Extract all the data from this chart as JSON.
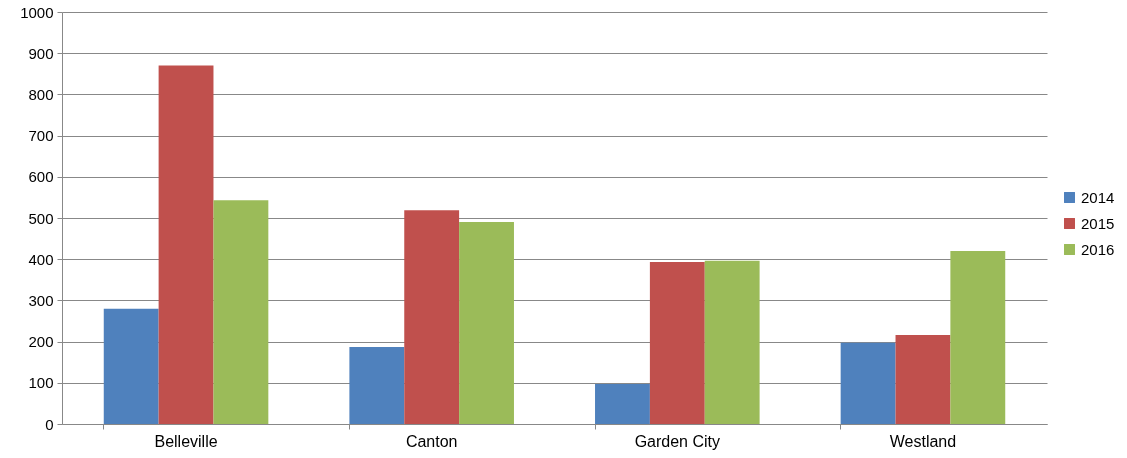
{
  "chart_data": {
    "type": "bar",
    "categories": [
      "Belleville",
      "Canton",
      "Garden City",
      "Westland"
    ],
    "series": [
      {
        "name": "2014",
        "color": "#4f81bd",
        "values": [
          280,
          187,
          97,
          197
        ]
      },
      {
        "name": "2015",
        "color": "#c0504d",
        "values": [
          870,
          519,
          393,
          216
        ]
      },
      {
        "name": "2016",
        "color": "#9bbb59",
        "values": [
          543,
          490,
          396,
          420
        ]
      }
    ],
    "ylim": [
      0,
      1000
    ],
    "yticks": [
      0,
      100,
      200,
      300,
      400,
      500,
      600,
      700,
      800,
      900,
      1000
    ],
    "grid": "y",
    "legend": "right"
  }
}
